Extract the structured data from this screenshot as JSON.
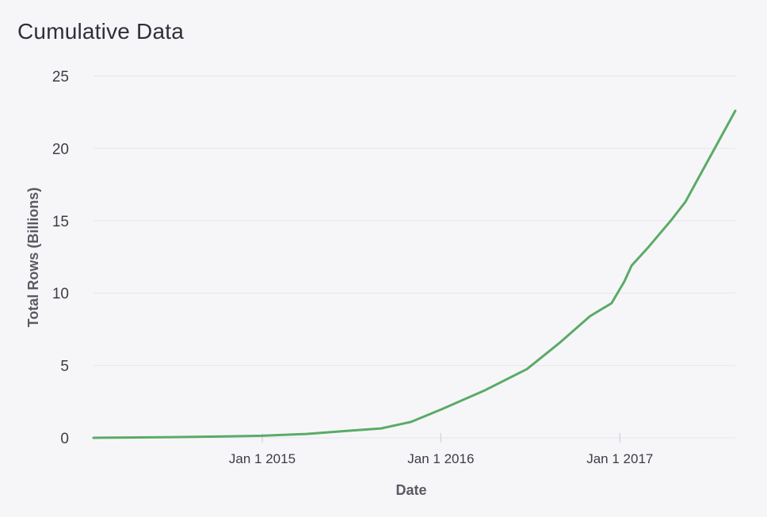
{
  "chart_data": {
    "type": "line",
    "title": "Cumulative Data",
    "xlabel": "Date",
    "ylabel": "Total Rows (Billions)",
    "ylim": [
      0,
      25
    ],
    "yticks": [
      0,
      5,
      10,
      15,
      20,
      25
    ],
    "xlim": [
      "2014-01-21",
      "2017-08-25"
    ],
    "xticks": [
      {
        "date": "2015-01-01",
        "label": "Jan 1 2015"
      },
      {
        "date": "2016-01-01",
        "label": "Jan 1 2016"
      },
      {
        "date": "2017-01-01",
        "label": "Jan 1 2017"
      }
    ],
    "grid": true,
    "color": "#5aab66",
    "series": [
      {
        "name": "",
        "points": [
          {
            "x": "2014-01-21",
            "y": 0.0
          },
          {
            "x": "2014-04-01",
            "y": 0.02
          },
          {
            "x": "2014-07-01",
            "y": 0.05
          },
          {
            "x": "2014-10-01",
            "y": 0.09
          },
          {
            "x": "2015-01-01",
            "y": 0.14
          },
          {
            "x": "2015-04-01",
            "y": 0.27
          },
          {
            "x": "2015-07-01",
            "y": 0.5
          },
          {
            "x": "2015-09-01",
            "y": 0.65
          },
          {
            "x": "2015-11-01",
            "y": 1.1
          },
          {
            "x": "2016-01-01",
            "y": 1.95
          },
          {
            "x": "2016-04-01",
            "y": 3.3
          },
          {
            "x": "2016-06-25",
            "y": 4.75
          },
          {
            "x": "2016-09-01",
            "y": 6.6
          },
          {
            "x": "2016-11-01",
            "y": 8.4
          },
          {
            "x": "2016-12-15",
            "y": 9.3
          },
          {
            "x": "2017-01-10",
            "y": 10.8
          },
          {
            "x": "2017-01-25",
            "y": 11.9
          },
          {
            "x": "2017-03-01",
            "y": 13.2
          },
          {
            "x": "2017-04-15",
            "y": 15.0
          },
          {
            "x": "2017-05-15",
            "y": 16.3
          },
          {
            "x": "2017-07-01",
            "y": 19.2
          },
          {
            "x": "2017-08-25",
            "y": 22.6
          }
        ]
      }
    ]
  }
}
